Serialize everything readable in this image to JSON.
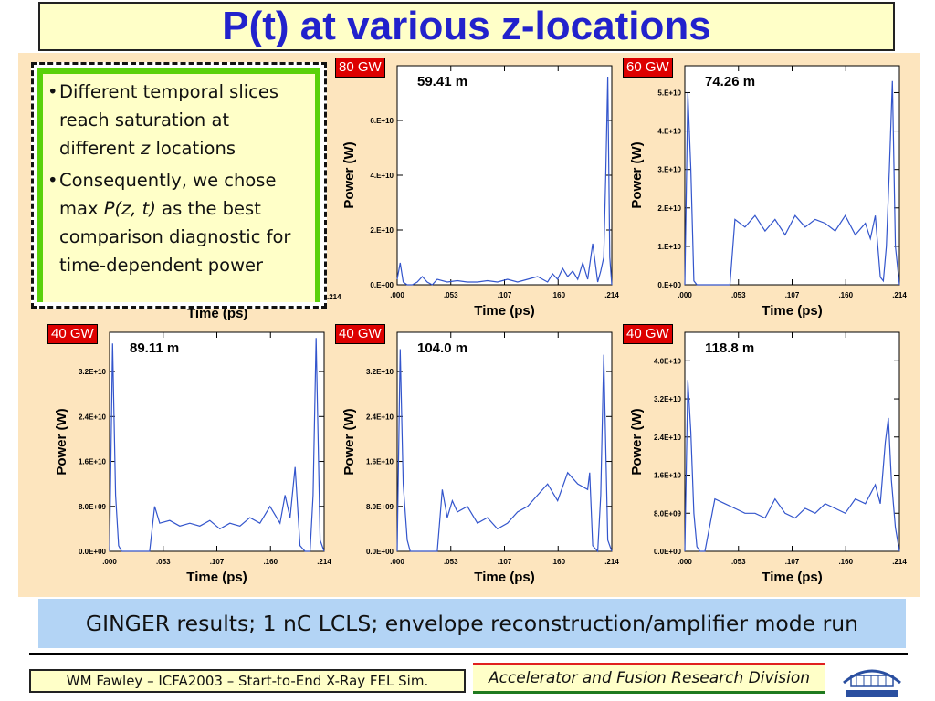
{
  "slide": {
    "title": "P(t) at various z-locations",
    "bullets": [
      {
        "pre": "Different temporal slices reach saturation at different ",
        "em": "z",
        "post": " locations"
      },
      {
        "pre": "Consequently, we chose max ",
        "em": "P(z, t)",
        "post": " as the best comparison diagnostic for time-dependent power"
      }
    ],
    "caption": "GINGER results; 1 nC LCLS; envelope reconstruction/amplifier mode run",
    "credit": "WM Fawley – ICFA2003 – Start-to-End X-Ray FEL Sim.",
    "division": "Accelerator and Fusion Research Division",
    "hidden_panel_visible_ticks": [
      "Time (ps)",
      ".214"
    ]
  },
  "colors": {
    "title": "#2222cc",
    "trace": "#3355cc",
    "tag_bg": "#dd0000",
    "plot_bg": "#fde5be"
  },
  "chart_data": [
    {
      "type": "line",
      "title": "59.41 m",
      "tag": "80 GW",
      "xlabel": "Time (ps)",
      "ylabel": "Power (W)",
      "xticks": [
        ".000",
        ".053",
        ".107",
        ".160",
        ".214"
      ],
      "yticks": [
        "0.E+00",
        "2.E+10",
        "4.E+10",
        "6.E+10"
      ],
      "xlim": [
        0,
        0.214
      ],
      "ylim": [
        0,
        80000000000.0
      ],
      "series": [
        {
          "x": [
            0,
            0.003,
            0.006,
            0.01,
            0.015,
            0.02,
            0.025,
            0.03,
            0.035,
            0.04,
            0.05,
            0.06,
            0.07,
            0.08,
            0.09,
            0.1,
            0.11,
            0.12,
            0.13,
            0.14,
            0.15,
            0.155,
            0.16,
            0.165,
            0.17,
            0.175,
            0.18,
            0.185,
            0.19,
            0.195,
            0.2,
            0.203,
            0.206,
            0.208,
            0.21,
            0.212,
            0.214
          ],
          "y": [
            2000000000.0,
            8000000000.0,
            1000000000.0,
            0,
            0,
            1000000000.0,
            3000000000.0,
            1000000000.0,
            0,
            2000000000.0,
            1000000000.0,
            1500000000.0,
            1000000000.0,
            1000000000.0,
            1500000000.0,
            1000000000.0,
            2000000000.0,
            1000000000.0,
            2000000000.0,
            3000000000.0,
            1000000000.0,
            4000000000.0,
            2000000000.0,
            6000000000.0,
            3000000000.0,
            5000000000.0,
            2000000000.0,
            8000000000.0,
            2000000000.0,
            15000000000.0,
            1000000000.0,
            5000000000.0,
            10000000000.0,
            40000000000.0,
            76000000000.0,
            10000000000.0,
            0
          ]
        }
      ]
    },
    {
      "type": "line",
      "title": "74.26 m",
      "tag": "60 GW",
      "xlabel": "Time (ps)",
      "ylabel": "Power (W)",
      "xticks": [
        ".000",
        ".053",
        ".107",
        ".160",
        ".214"
      ],
      "yticks": [
        "0.E+00",
        "1.E+10",
        "2.E+10",
        "3.E+10",
        "4.E+10",
        "5.E+10"
      ],
      "xlim": [
        0,
        0.214
      ],
      "ylim": [
        0,
        57000000000.0
      ],
      "series": [
        {
          "x": [
            0,
            0.003,
            0.006,
            0.009,
            0.012,
            0.02,
            0.03,
            0.04,
            0.045,
            0.05,
            0.06,
            0.07,
            0.08,
            0.09,
            0.1,
            0.11,
            0.12,
            0.13,
            0.14,
            0.15,
            0.16,
            0.17,
            0.18,
            0.185,
            0.19,
            0.195,
            0.198,
            0.201,
            0.204,
            0.207,
            0.21,
            0.214
          ],
          "y": [
            0,
            50000000000.0,
            30000000000.0,
            1000000000.0,
            0,
            0,
            0,
            0,
            0,
            17000000000.0,
            15000000000.0,
            18000000000.0,
            14000000000.0,
            17000000000.0,
            13000000000.0,
            18000000000.0,
            15000000000.0,
            17000000000.0,
            16000000000.0,
            14000000000.0,
            18000000000.0,
            13000000000.0,
            16000000000.0,
            12000000000.0,
            18000000000.0,
            2000000000.0,
            1000000000.0,
            10000000000.0,
            30000000000.0,
            53000000000.0,
            10000000000.0,
            0
          ]
        }
      ]
    },
    {
      "type": "line",
      "title": "89.11 m",
      "tag": "40 GW",
      "xlabel": "Time (ps)",
      "ylabel": "Power (W)",
      "xticks": [
        ".000",
        ".053",
        ".107",
        ".160",
        ".214"
      ],
      "yticks": [
        "0.0E+00",
        "8.0E+09",
        "1.6E+10",
        "2.4E+10",
        "3.2E+10"
      ],
      "xlim": [
        0,
        0.214
      ],
      "ylim": [
        0,
        39000000000.0
      ],
      "series": [
        {
          "x": [
            0,
            0.003,
            0.006,
            0.009,
            0.012,
            0.02,
            0.03,
            0.04,
            0.045,
            0.05,
            0.06,
            0.07,
            0.08,
            0.09,
            0.1,
            0.11,
            0.12,
            0.13,
            0.14,
            0.15,
            0.16,
            0.17,
            0.175,
            0.18,
            0.185,
            0.19,
            0.195,
            0.2,
            0.203,
            0.206,
            0.21,
            0.214
          ],
          "y": [
            0,
            37000000000.0,
            10000000000.0,
            1000000000.0,
            0,
            0,
            0,
            0,
            8000000000.0,
            5000000000.0,
            5500000000.0,
            4500000000.0,
            5000000000.0,
            4500000000.0,
            5500000000.0,
            4000000000.0,
            5000000000.0,
            4500000000.0,
            6000000000.0,
            5000000000.0,
            8000000000.0,
            5000000000.0,
            10000000000.0,
            6000000000.0,
            15000000000.0,
            1000000000.0,
            0,
            0,
            10000000000.0,
            38000000000.0,
            2000000000.0,
            0
          ]
        }
      ]
    },
    {
      "type": "line",
      "title": "104.0 m",
      "tag": "40 GW",
      "xlabel": "Time (ps)",
      "ylabel": "Power (W)",
      "xticks": [
        ".000",
        ".053",
        ".107",
        ".160",
        ".214"
      ],
      "yticks": [
        "0.0E+00",
        "8.0E+09",
        "1.6E+10",
        "2.4E+10",
        "3.2E+10"
      ],
      "xlim": [
        0,
        0.214
      ],
      "ylim": [
        0,
        39000000000.0
      ],
      "series": [
        {
          "x": [
            0,
            0.003,
            0.006,
            0.01,
            0.013,
            0.02,
            0.03,
            0.04,
            0.045,
            0.05,
            0.055,
            0.06,
            0.07,
            0.08,
            0.09,
            0.1,
            0.11,
            0.12,
            0.13,
            0.14,
            0.15,
            0.16,
            0.17,
            0.18,
            0.19,
            0.192,
            0.195,
            0.2,
            0.203,
            0.206,
            0.21,
            0.214
          ],
          "y": [
            0,
            36000000000.0,
            12000000000.0,
            2000000000.0,
            0,
            0,
            0,
            0,
            11000000000.0,
            6000000000.0,
            9000000000.0,
            7000000000.0,
            8000000000.0,
            5000000000.0,
            6000000000.0,
            4000000000.0,
            5000000000.0,
            7000000000.0,
            8000000000.0,
            10000000000.0,
            12000000000.0,
            9000000000.0,
            14000000000.0,
            12000000000.0,
            11000000000.0,
            14000000000.0,
            1000000000.0,
            0,
            10000000000.0,
            35000000000.0,
            2000000000.0,
            0
          ]
        }
      ]
    },
    {
      "type": "line",
      "title": "118.8 m",
      "tag": "40 GW",
      "xlabel": "Time (ps)",
      "ylabel": "Power (W)",
      "xticks": [
        ".000",
        ".053",
        ".107",
        ".160",
        ".214"
      ],
      "yticks": [
        "0.0E+00",
        "8.0E+09",
        "1.6E+10",
        "2.4E+10",
        "3.2E+10",
        "4.0E+10"
      ],
      "xlim": [
        0,
        0.214
      ],
      "ylim": [
        0,
        46000000000.0
      ],
      "series": [
        {
          "x": [
            0,
            0.003,
            0.006,
            0.009,
            0.012,
            0.015,
            0.02,
            0.03,
            0.04,
            0.05,
            0.06,
            0.07,
            0.08,
            0.09,
            0.1,
            0.11,
            0.12,
            0.13,
            0.14,
            0.15,
            0.16,
            0.17,
            0.18,
            0.19,
            0.195,
            0.2,
            0.203,
            0.206,
            0.21,
            0.214
          ],
          "y": [
            0,
            36000000000.0,
            25000000000.0,
            8000000000.0,
            1000000000.0,
            0,
            0,
            11000000000.0,
            10000000000.0,
            9000000000.0,
            8000000000.0,
            8000000000.0,
            7000000000.0,
            11000000000.0,
            8000000000.0,
            7000000000.0,
            9000000000.0,
            8000000000.0,
            10000000000.0,
            9000000000.0,
            8000000000.0,
            11000000000.0,
            10000000000.0,
            14000000000.0,
            10000000000.0,
            23000000000.0,
            28000000000.0,
            15000000000.0,
            5000000000.0,
            0
          ]
        }
      ]
    }
  ]
}
